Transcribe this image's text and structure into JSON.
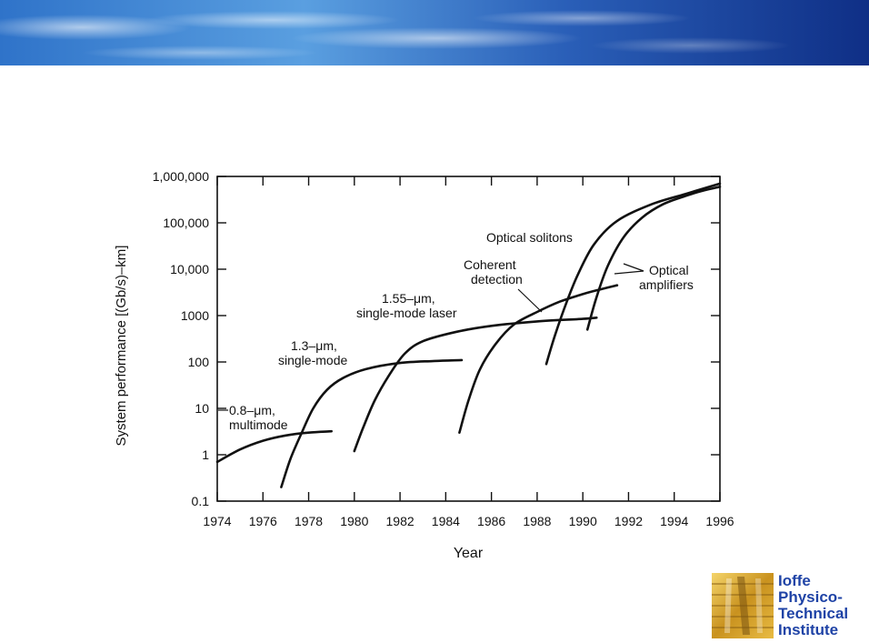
{
  "colors": {
    "banner_dark": "#0f2f86",
    "banner_light": "#d6ebff",
    "logo_blue": "#1f43a6",
    "logo_gold": "#d6a52a"
  },
  "logo": {
    "lines": [
      "Ioffe",
      "Physico-",
      "Technical",
      "Institute"
    ]
  },
  "chart_data": {
    "type": "line",
    "title": "",
    "xlabel": "Year",
    "ylabel": "System performance [(Gb/s)–km]",
    "xlim": [
      1974,
      1996
    ],
    "ylim": [
      0.1,
      1000000
    ],
    "y_scale": "log",
    "grid": false,
    "x_ticks": [
      "1974",
      "1976",
      "1978",
      "1980",
      "1982",
      "1984",
      "1986",
      "1988",
      "1990",
      "1992",
      "1994",
      "1996"
    ],
    "y_ticks": [
      "0.1",
      "1",
      "10",
      "100",
      "1000",
      "10,000",
      "100,000",
      "1,000,000"
    ],
    "annotations": [
      {
        "id": "mm",
        "lines": [
          "0.8–μm,",
          "multimode"
        ]
      },
      {
        "id": "sm13",
        "lines": [
          "1.3–μm,",
          "single-mode"
        ]
      },
      {
        "id": "sm155",
        "lines": [
          "1.55–μm,",
          "single-mode laser"
        ]
      },
      {
        "id": "coh",
        "lines": [
          "Coherent",
          "detection"
        ]
      },
      {
        "id": "sol",
        "lines": [
          "Optical solitons"
        ]
      },
      {
        "id": "amp",
        "lines": [
          "Optical",
          "amplifiers"
        ]
      }
    ],
    "series": [
      {
        "x": [
          1974.0,
          1975.0,
          1976.0,
          1977.0,
          1978.0,
          1979.0
        ],
        "y": [
          0.7,
          1.3,
          2.0,
          2.6,
          3.0,
          3.2
        ]
      },
      {
        "x": [
          1976.8,
          1977.2,
          1977.7,
          1978.2,
          1978.8,
          1979.5,
          1980.5,
          1982.0,
          1983.5,
          1984.7
        ],
        "y": [
          0.2,
          0.8,
          3,
          10,
          25,
          45,
          70,
          95,
          105,
          110
        ]
      },
      {
        "x": [
          1980.0,
          1980.4,
          1980.9,
          1981.5,
          1982.2,
          1983.0,
          1984.5,
          1986.0,
          1988.0,
          1990.0,
          1990.6
        ],
        "y": [
          1.2,
          4,
          15,
          50,
          150,
          280,
          450,
          600,
          750,
          850,
          900
        ]
      },
      {
        "x": [
          1984.6,
          1985.0,
          1985.5,
          1986.2,
          1987.0,
          1988.0,
          1989.0,
          1990.0,
          1990.8,
          1991.5
        ],
        "y": [
          3,
          15,
          70,
          250,
          650,
          1200,
          2000,
          2900,
          3700,
          4500
        ]
      },
      {
        "x": [
          1988.4,
          1988.8,
          1989.3,
          1989.8,
          1990.5,
          1991.5,
          1993.0,
          1994.5,
          1996.0
        ],
        "y": [
          90,
          400,
          2000,
          8000,
          35000,
          110000,
          250000,
          420000,
          700000
        ]
      },
      {
        "x": [
          1990.2,
          1990.6,
          1991.1,
          1991.8,
          1992.6,
          1993.5,
          1994.5,
          1995.3,
          1996.0
        ],
        "y": [
          500,
          2500,
          12000,
          50000,
          130000,
          250000,
          380000,
          500000,
          600000
        ]
      }
    ]
  }
}
